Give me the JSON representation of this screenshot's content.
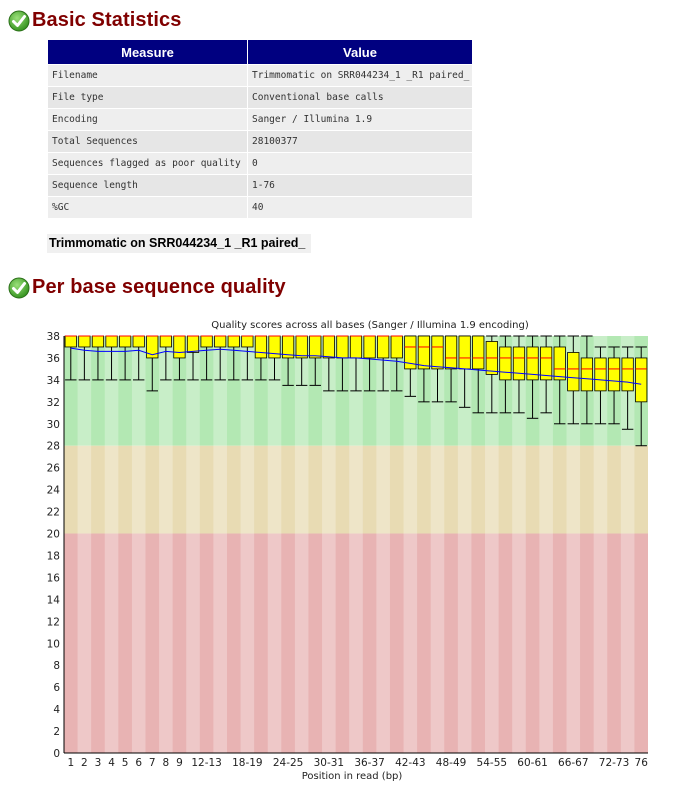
{
  "basic_stats": {
    "title": "Basic Statistics",
    "status": "pass",
    "columns": [
      "Measure",
      "Value"
    ],
    "rows": [
      [
        "Filename",
        "Trimmomatic on SRR044234_1 _R1 paired_"
      ],
      [
        "File type",
        "Conventional base calls"
      ],
      [
        "Encoding",
        "Sanger / Illumina 1.9"
      ],
      [
        "Total Sequences",
        "28100377"
      ],
      [
        "Sequences flagged as poor quality",
        "0"
      ],
      [
        "Sequence length",
        "1-76"
      ],
      [
        "%GC",
        "40"
      ]
    ],
    "caption": "Trimmomatic on SRR044234_1 _R1 paired_"
  },
  "per_base": {
    "title": "Per base sequence quality",
    "status": "pass"
  },
  "colors": {
    "header_bg": "#000080",
    "title_color": "#800000",
    "zone_good": "#b3e8b3",
    "zone_warn": "#e8dbb3",
    "zone_bad": "#e8b3b3",
    "box_fill": "#ffff00",
    "median": "#ff0000",
    "mean_line": "#0000ff"
  },
  "chart_data": {
    "type": "boxplot",
    "title": "Quality scores across all bases (Sanger / Illumina 1.9 encoding)",
    "xlabel": "Position in read (bp)",
    "ylabel": "",
    "ylim": [
      0,
      38
    ],
    "yticks": [
      0,
      2,
      4,
      6,
      8,
      10,
      12,
      14,
      16,
      18,
      20,
      22,
      24,
      26,
      28,
      30,
      32,
      34,
      36,
      38
    ],
    "zones": [
      {
        "name": "good",
        "from": 28,
        "to": 38
      },
      {
        "name": "warning",
        "from": 20,
        "to": 28
      },
      {
        "name": "poor",
        "from": 0,
        "to": 20
      }
    ],
    "categories": [
      "1",
      "2",
      "3",
      "4",
      "5",
      "6",
      "7",
      "8",
      "9",
      "10-11",
      "12-13",
      "14-15",
      "16-17",
      "18-19",
      "20-21",
      "22-23",
      "24-25",
      "26-27",
      "28-29",
      "30-31",
      "32-33",
      "34-35",
      "36-37",
      "38-39",
      "40-41",
      "42-43",
      "44-45",
      "46-47",
      "48-49",
      "50-51",
      "52-53",
      "54-55",
      "56-57",
      "58-59",
      "60-61",
      "62-63",
      "64-65",
      "66-67",
      "68-69",
      "70-71",
      "72-73",
      "74-75",
      "76"
    ],
    "tick_labels": [
      "1",
      "2",
      "3",
      "4",
      "5",
      "6",
      "7",
      "8",
      "9",
      "12-13",
      "18-19",
      "24-25",
      "30-31",
      "36-37",
      "42-43",
      "48-49",
      "54-55",
      "60-61",
      "66-67",
      "72-73",
      "76"
    ],
    "tick_label_categories": [
      "1",
      "2",
      "3",
      "4",
      "5",
      "6",
      "7",
      "8",
      "9",
      "12-13",
      "18-19",
      "24-25",
      "30-31",
      "36-37",
      "42-43",
      "48-49",
      "54-55",
      "60-61",
      "66-67",
      "72-73",
      "76"
    ],
    "lower_whisker": [
      34,
      34,
      34,
      34,
      34,
      34,
      33,
      34,
      34,
      34,
      34,
      34,
      34,
      34,
      34,
      34,
      33.5,
      33.5,
      33.5,
      33,
      33,
      33,
      33,
      33,
      33,
      32.5,
      32,
      32,
      32,
      31.5,
      31,
      31,
      31,
      31,
      30.5,
      31,
      30,
      30,
      30,
      30,
      30,
      29.5,
      28
    ],
    "q1": [
      37,
      37,
      37,
      37,
      37,
      37,
      36,
      37,
      36,
      36.5,
      37,
      37,
      37,
      37,
      36,
      36,
      36,
      36,
      36,
      36,
      36,
      36,
      36,
      36,
      36,
      35,
      35,
      35,
      35,
      35,
      35,
      34.5,
      34,
      34,
      34,
      34,
      34,
      33,
      33,
      33,
      33,
      33,
      32
    ],
    "median": [
      38,
      38,
      38,
      38,
      38,
      38,
      38,
      38,
      38,
      38,
      38,
      38,
      38,
      38,
      38,
      38,
      38,
      38,
      38,
      38,
      38,
      38,
      38,
      38,
      38,
      37,
      37,
      37,
      36,
      36,
      36,
      36,
      36,
      36,
      36,
      36,
      35,
      35,
      35,
      35,
      35,
      35,
      35
    ],
    "q3": [
      38,
      38,
      38,
      38,
      38,
      38,
      38,
      38,
      38,
      38,
      38,
      38,
      38,
      38,
      38,
      38,
      38,
      38,
      38,
      38,
      38,
      38,
      38,
      38,
      38,
      38,
      38,
      38,
      38,
      38,
      38,
      37.5,
      37,
      37,
      37,
      37,
      37,
      36.5,
      36,
      36,
      36,
      36,
      36
    ],
    "upper_whisker": [
      38,
      38,
      38,
      38,
      38,
      38,
      38,
      38,
      38,
      38,
      38,
      38,
      38,
      38,
      38,
      38,
      38,
      38,
      38,
      38,
      38,
      38,
      38,
      38,
      38,
      38,
      38,
      38,
      38,
      38,
      38,
      38,
      38,
      38,
      38,
      38,
      38,
      38,
      38,
      37,
      37,
      37,
      37
    ],
    "mean": [
      36.9,
      36.7,
      36.6,
      36.6,
      36.6,
      36.7,
      36.3,
      36.6,
      36.5,
      36.6,
      36.7,
      36.8,
      36.7,
      36.6,
      36.5,
      36.4,
      36.3,
      36.2,
      36.2,
      36.1,
      36.0,
      36.0,
      35.9,
      35.8,
      35.7,
      35.5,
      35.3,
      35.2,
      35.1,
      35.0,
      34.9,
      34.8,
      34.7,
      34.6,
      34.5,
      34.4,
      34.3,
      34.2,
      34.1,
      34.0,
      33.9,
      33.8,
      33.6
    ]
  }
}
